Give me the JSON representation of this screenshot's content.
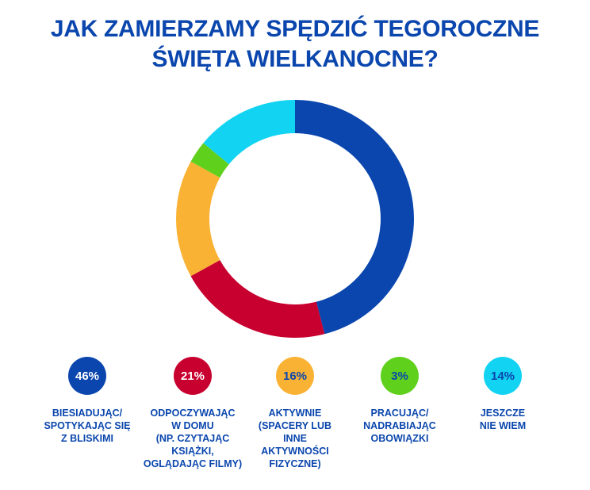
{
  "title_line1": "JAK ZAMIERZAMY SPĘDZIĆ TEGOROCZNE",
  "title_line2": "ŚWIĘTA WIELKANOCNE?",
  "chart_data": {
    "type": "pie",
    "donut": true,
    "title": "JAK ZAMIERZAMY SPĘDZIĆ TEGOROCZNE ŚWIĘTA WIELKANOCNE?",
    "categories": [
      "BIESIADUJĄC/ SPOTYKAJĄC SIĘ Z BLISKIMI",
      "ODPOCZYWAJĄC W DOMU (NP. CZYTAJĄC KSIĄŻKI, OGLĄDAJĄC FILMY)",
      "AKTYWNIE (SPACERY LUB INNE AKTYWNOŚCI FIZYCZNE)",
      "PRACUJĄC/ NADRABIAJĄC OBOWIĄZKI",
      "JESZCZE NIE WIEM"
    ],
    "values": [
      46,
      21,
      16,
      3,
      14
    ],
    "colors": [
      "#0a46ad",
      "#c8002f",
      "#f9b233",
      "#5fd01c",
      "#12d3f2"
    ],
    "legend_position": "bottom"
  },
  "legend": [
    {
      "pct": "46%",
      "label": "BIESIADUJĄC/\nSPOTYKAJĄC SIĘ\nZ BLISKIMI",
      "text_color": "#ffffff"
    },
    {
      "pct": "21%",
      "label": "ODPOCZYWAJĄC\nW DOMU\n(NP. CZYTAJĄC\nKSIĄŻKI,\nOGLĄDAJĄC FILMY)",
      "text_color": "#ffffff"
    },
    {
      "pct": "16%",
      "label": "AKTYWNIE\n(SPACERY LUB\nINNE\nAKTYWNOŚCI\nFIZYCZNE)",
      "text_color": "#0a46ad"
    },
    {
      "pct": "3%",
      "label": "PRACUJĄC/\nNADRABIAJĄC\nOBOWIĄZKI",
      "text_color": "#0a46ad"
    },
    {
      "pct": "14%",
      "label": "JESZCZE\nNIE WIEM",
      "text_color": "#0a46ad"
    }
  ]
}
